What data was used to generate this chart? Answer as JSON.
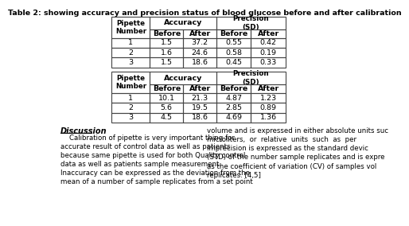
{
  "title": "Table 2: showing accuracy and precision status of blood glucose before and after calibration",
  "table1_rows": [
    [
      "1",
      "1.5",
      "37.2",
      "0.55",
      "0.42"
    ],
    [
      "2",
      "1.6",
      "24.6",
      "0.58",
      "0.19"
    ],
    [
      "3",
      "1.5",
      "18.6",
      "0.45",
      "0.33"
    ]
  ],
  "table2_rows": [
    [
      "1",
      "10.1",
      "21.3",
      "4.87",
      "1.23"
    ],
    [
      "2",
      "5.6",
      "19.5",
      "2.85",
      "0.89"
    ],
    [
      "3",
      "4.5",
      "18.6",
      "4.69",
      "1.36"
    ]
  ],
  "discussion_heading": "Discussion",
  "discussion_left": "    Calibration of pipette is very important thing for\naccurate result of control data as well as patients\nbecause same pipette is used for both Quality control\ndata as well as patients sample measurement.\nInaccuracy can be expressed as the deviation from the\nmean of a number of sample replicates from a set point",
  "discussion_right": "volume and is expressed in either absolute units suc\nmicroliters,  or  relative  units  such  as  per\nImprecision is expressed as the standard devic\n(STD) of the number sample replicates and is expre\nas the coefficient of variation (CV) of samples vol\nreplicates. [4,5]",
  "bg_color": "#ffffff",
  "text_color": "#000000",
  "border_color": "#444444",
  "font_size_title": 6.8,
  "font_size_table": 6.8,
  "font_size_disc": 6.2
}
